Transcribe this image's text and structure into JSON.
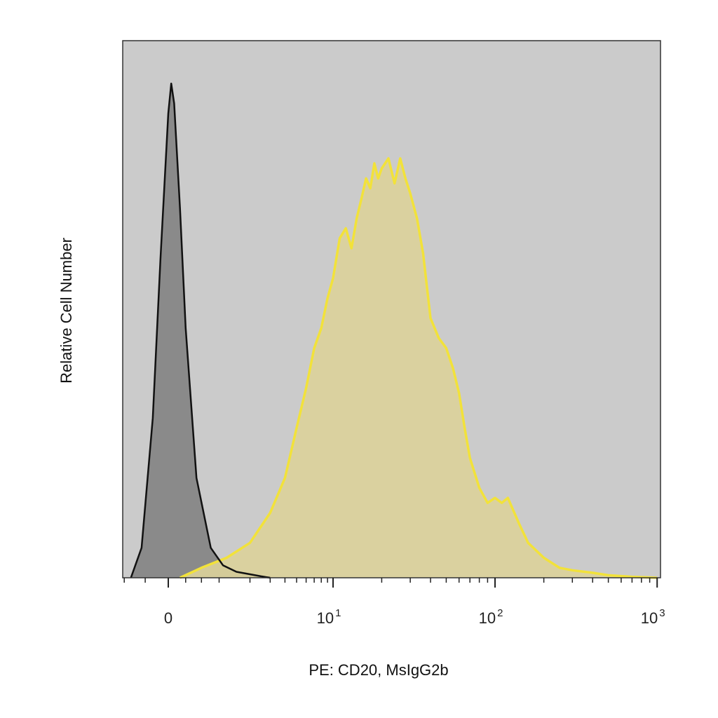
{
  "chart_data": {
    "type": "area",
    "title": "",
    "xlabel": "PE: CD20, MsIgG2b",
    "ylabel": "Relative Cell Number",
    "x_scale": "biexponential",
    "xlim": [
      -0.7,
      1100
    ],
    "ylim": [
      0,
      1
    ],
    "grid": false,
    "legend": "none",
    "background_color": "#cbcbcb",
    "x_tick_labels": [
      {
        "value": 0,
        "base": "0",
        "exp": ""
      },
      {
        "value": 10,
        "base": "10",
        "exp": "1"
      },
      {
        "value": 100,
        "base": "10",
        "exp": "2"
      },
      {
        "value": 1000,
        "base": "10",
        "exp": "3"
      }
    ],
    "series": [
      {
        "role": "isotype-control",
        "line_color": "#111111",
        "fill_color": "#8a8a8a",
        "x": [
          -0.5,
          -0.35,
          -0.2,
          -0.1,
          0,
          0.05,
          0.1,
          0.2,
          0.3,
          0.5,
          0.8,
          1.1,
          1.5,
          2,
          2.5,
          3
        ],
        "values": [
          0,
          0.06,
          0.32,
          0.64,
          0.93,
          0.99,
          0.95,
          0.74,
          0.5,
          0.2,
          0.06,
          0.025,
          0.012,
          0.007,
          0.003,
          0
        ]
      },
      {
        "role": "cd20-stained",
        "line_color": "#f2e23a",
        "fill_color": "#dcd29a",
        "x": [
          0.2,
          0.6,
          1.2,
          2,
          3,
          4,
          5,
          6,
          7,
          8,
          9,
          10,
          11,
          12,
          13,
          14,
          15,
          16,
          17,
          18,
          19,
          20,
          22,
          24,
          26,
          28,
          30,
          33,
          36,
          40,
          45,
          50,
          55,
          60,
          65,
          70,
          80,
          90,
          100,
          110,
          120,
          140,
          160,
          200,
          250,
          300,
          400,
          500,
          700,
          1000
        ],
        "values": [
          0,
          0.02,
          0.04,
          0.07,
          0.13,
          0.2,
          0.3,
          0.38,
          0.46,
          0.5,
          0.56,
          0.6,
          0.68,
          0.7,
          0.66,
          0.72,
          0.76,
          0.8,
          0.78,
          0.83,
          0.8,
          0.82,
          0.84,
          0.79,
          0.84,
          0.8,
          0.77,
          0.72,
          0.65,
          0.52,
          0.48,
          0.46,
          0.42,
          0.37,
          0.3,
          0.24,
          0.18,
          0.15,
          0.16,
          0.15,
          0.16,
          0.11,
          0.07,
          0.04,
          0.02,
          0.015,
          0.01,
          0.005,
          0.002,
          0
        ]
      }
    ]
  }
}
